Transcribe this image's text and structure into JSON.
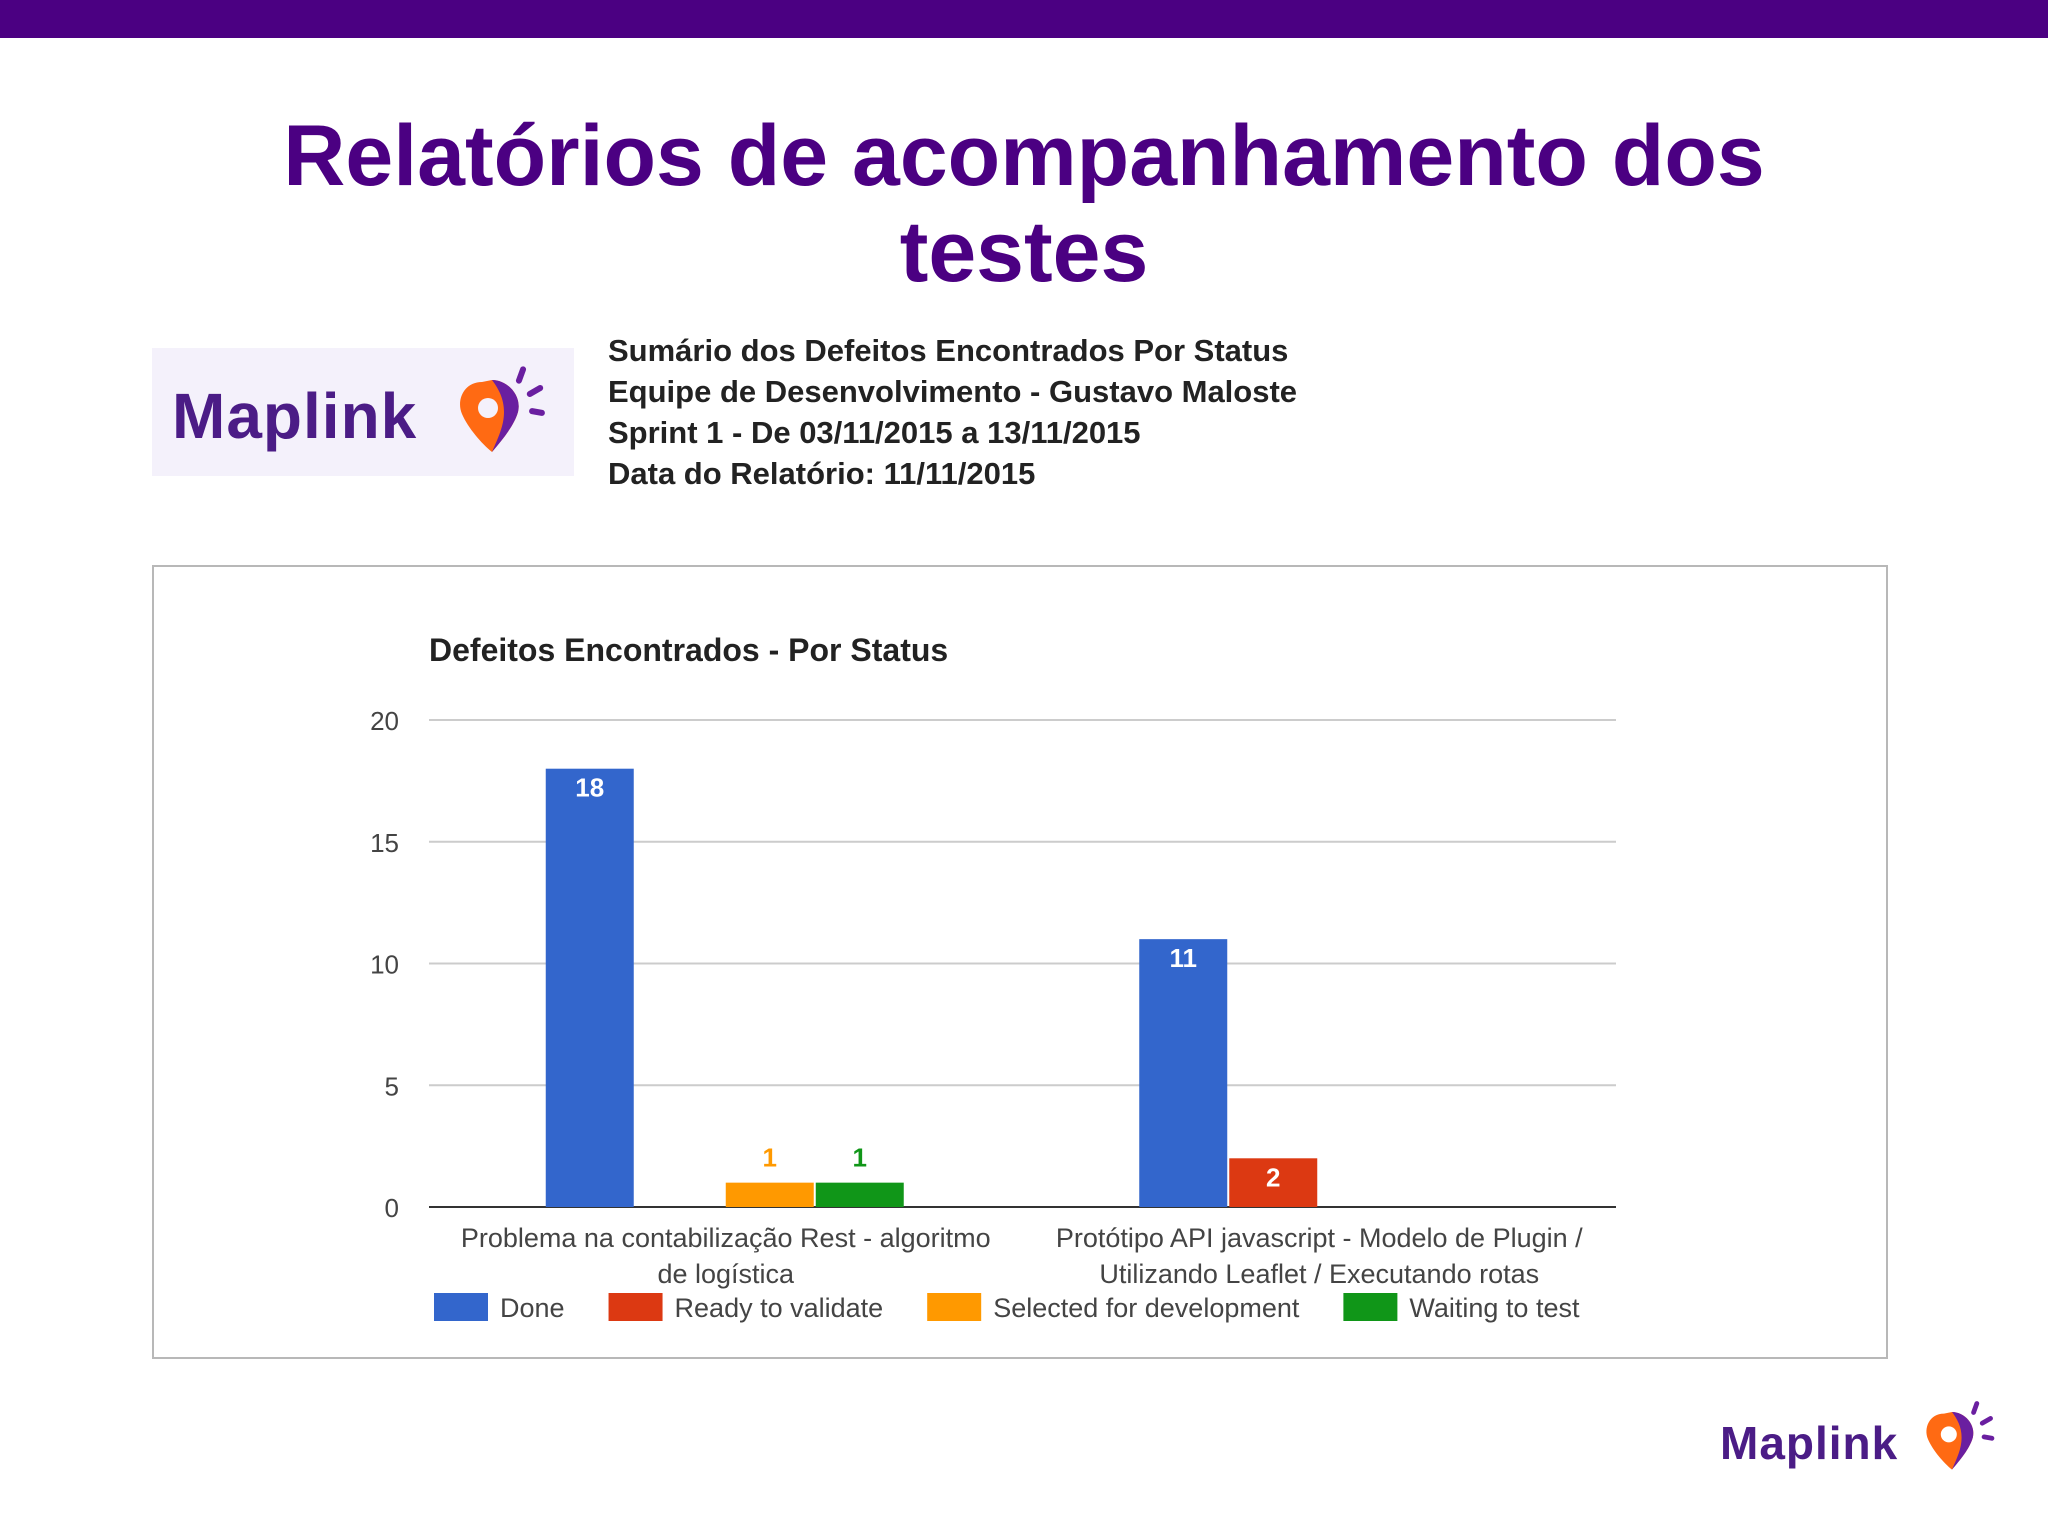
{
  "slide": {
    "title_line1": "Relatórios de acompanhamento dos",
    "title_line2": "testes",
    "accent_color": "#4b0082"
  },
  "logo": {
    "text": "Maplink",
    "icon": "map-pin-icon"
  },
  "summary": {
    "line1": "Sumário dos Defeitos Encontrados Por Status",
    "line2": "Equipe de Desenvolvimento - Gustavo Maloste",
    "line3": "Sprint 1 - De 03/11/2015 a 13/11/2015",
    "line4": "Data do Relatório: 11/11/2015"
  },
  "footer": {
    "logo_text": "Maplink"
  },
  "chart_data": {
    "type": "bar",
    "title": "Defeitos Encontrados - Por Status",
    "categories": [
      [
        "Problema na contabilização Rest - algoritmo",
        "de logística"
      ],
      [
        "Protótipo API javascript - Modelo de Plugin /",
        "Utilizando Leaflet / Executando rotas"
      ]
    ],
    "series": [
      {
        "name": "Done",
        "color": "#3366cc",
        "values": [
          18,
          11
        ]
      },
      {
        "name": "Ready to validate",
        "color": "#dc3912",
        "values": [
          0,
          2
        ]
      },
      {
        "name": "Selected for development",
        "color": "#ff9900",
        "values": [
          1,
          0
        ]
      },
      {
        "name": "Waiting to test",
        "color": "#109618",
        "values": [
          1,
          0
        ]
      }
    ],
    "ylim": [
      0,
      20
    ],
    "yticks": [
      0,
      5,
      10,
      15,
      20
    ],
    "grid": true,
    "legend": "bottom",
    "data_labels": true
  }
}
